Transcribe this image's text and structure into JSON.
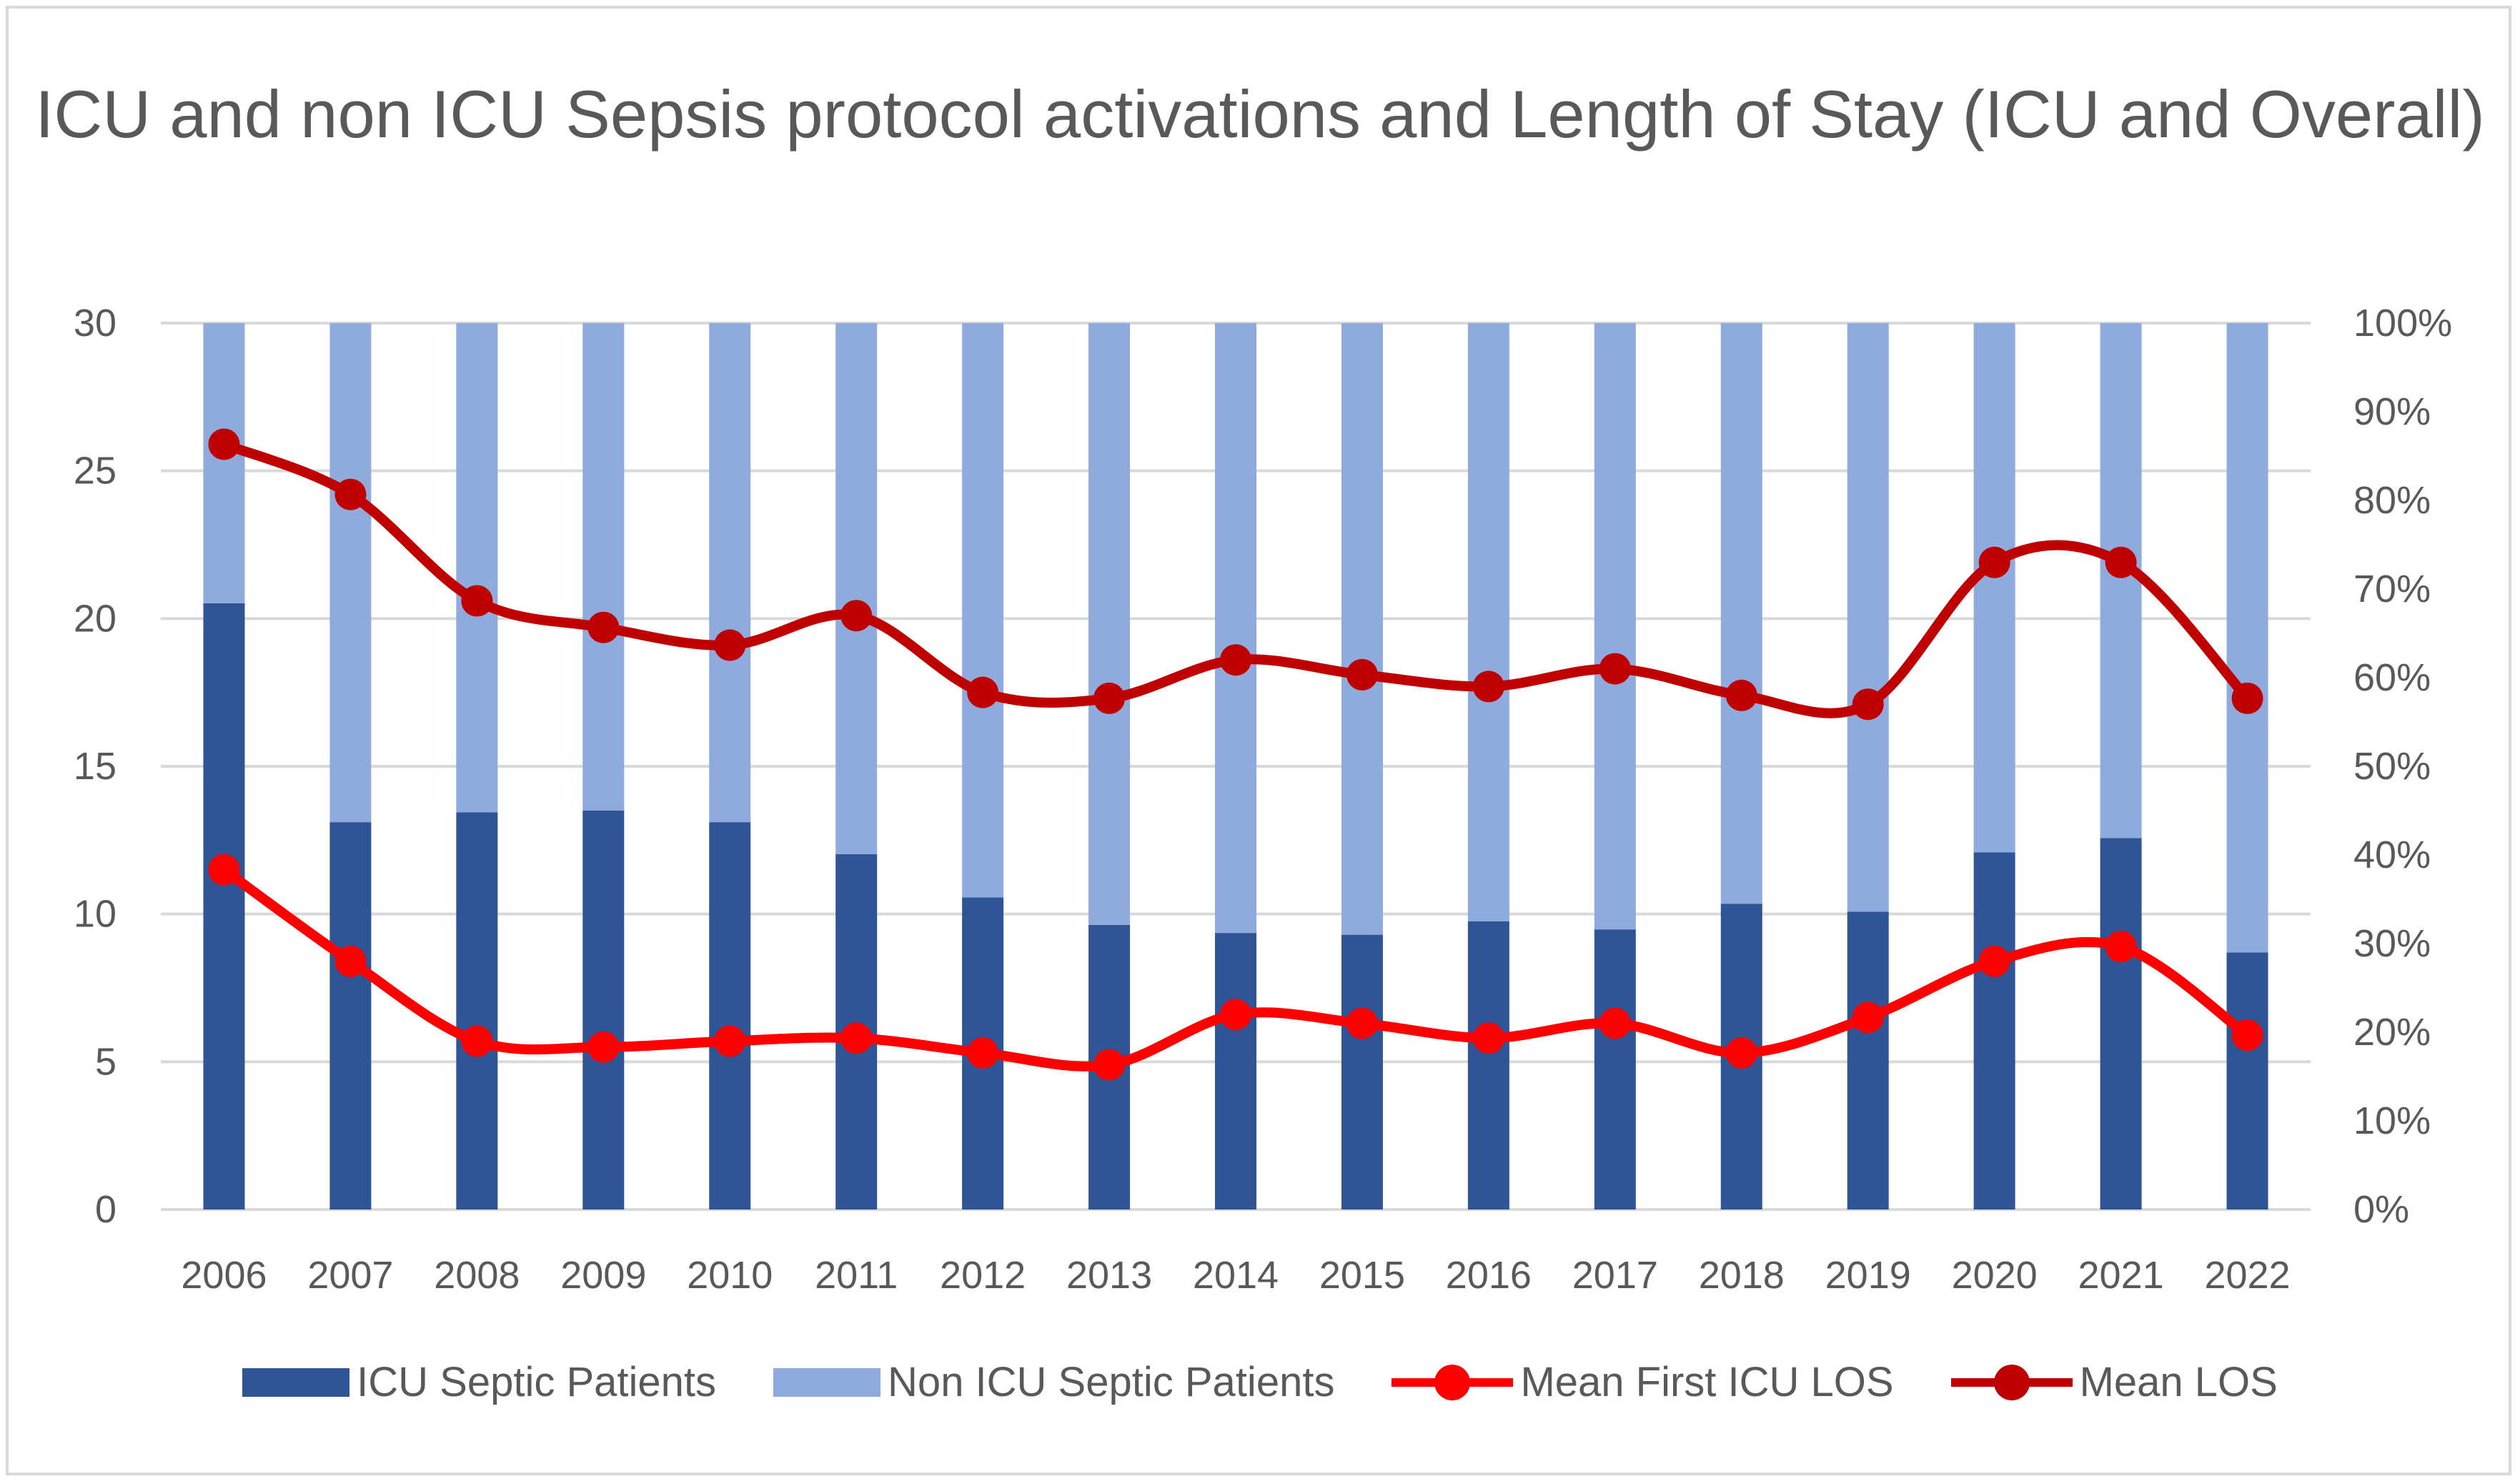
{
  "chart_data": {
    "type": "bar",
    "title": "ICU and non ICU Sepsis protocol activations and Length of Stay (ICU and Overall)",
    "categories": [
      "2006",
      "2007",
      "2008",
      "2009",
      "2010",
      "2011",
      "2012",
      "2013",
      "2014",
      "2015",
      "2016",
      "2017",
      "2018",
      "2019",
      "2020",
      "2021",
      "2022"
    ],
    "left_axis": {
      "ylim": [
        0,
        30
      ],
      "ticks": [
        "0",
        "5",
        "10",
        "15",
        "20",
        "25",
        "30"
      ]
    },
    "right_axis": {
      "ylim": [
        0,
        100
      ],
      "ticks": [
        "0%",
        "10%",
        "20%",
        "30%",
        "40%",
        "50%",
        "60%",
        "70%",
        "80%",
        "90%",
        "100%"
      ]
    },
    "grid": true,
    "legend_position": "bottom",
    "series": [
      {
        "name": "ICU Septic Patients",
        "kind": "stacked-bar-percent",
        "axis": "right",
        "color": "#2F5597",
        "values": [
          68.4,
          43.7,
          44.8,
          45.0,
          43.7,
          40.1,
          35.2,
          32.1,
          31.2,
          31.0,
          32.5,
          31.6,
          34.5,
          33.6,
          40.3,
          41.9,
          29.0
        ]
      },
      {
        "name": "Non ICU Septic Patients",
        "kind": "stacked-bar-percent",
        "axis": "right",
        "color": "#8FAADC",
        "values": [
          31.6,
          56.3,
          55.2,
          55.0,
          56.3,
          59.9,
          64.8,
          67.9,
          68.8,
          69.0,
          67.5,
          68.4,
          65.5,
          66.4,
          59.7,
          58.1,
          71.0
        ]
      },
      {
        "name": "Mean First ICU LOS",
        "kind": "line",
        "axis": "left",
        "color": "#FF0000",
        "values": [
          11.5,
          8.4,
          5.7,
          5.5,
          5.7,
          5.8,
          5.3,
          4.9,
          6.6,
          6.3,
          5.8,
          6.3,
          5.3,
          6.5,
          8.4,
          8.9,
          5.9
        ]
      },
      {
        "name": "Mean LOS",
        "kind": "line",
        "axis": "left",
        "color": "#C00000",
        "values": [
          25.9,
          24.2,
          20.6,
          19.7,
          19.1,
          20.1,
          17.5,
          17.3,
          18.6,
          18.1,
          17.7,
          18.3,
          17.4,
          17.1,
          21.9,
          21.9,
          17.3
        ]
      }
    ]
  }
}
